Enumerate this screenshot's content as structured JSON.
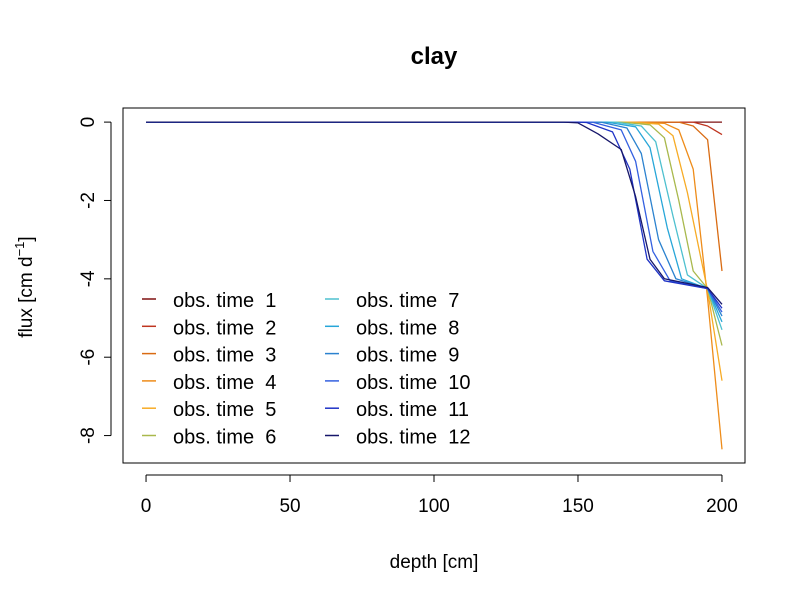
{
  "chart_data": {
    "type": "line",
    "title": "clay",
    "xlabel": "depth [cm]",
    "ylabel": "flux [cm d",
    "ylabel_sup": "−1",
    "ylabel_close": "]",
    "xlim": [
      -8,
      208
    ],
    "ylim": [
      -8.7,
      0.36
    ],
    "x_ticks": [
      0,
      50,
      100,
      150,
      200
    ],
    "y_ticks": [
      0,
      -2,
      -4,
      -6,
      -8
    ],
    "grid": false,
    "legend_position": "bottom-left",
    "series": [
      {
        "name": "obs. time  1",
        "color": "#7f1010",
        "points": [
          [
            0,
            0
          ],
          [
            150,
            0
          ],
          [
            180,
            0
          ],
          [
            190,
            0
          ],
          [
            195,
            0
          ],
          [
            200,
            0
          ]
        ]
      },
      {
        "name": "obs. time  2",
        "color": "#bf3520",
        "points": [
          [
            0,
            0
          ],
          [
            150,
            0
          ],
          [
            180,
            0
          ],
          [
            190,
            0
          ],
          [
            195,
            -0.1
          ],
          [
            200,
            -0.32
          ]
        ]
      },
      {
        "name": "obs. time  3",
        "color": "#d96b12",
        "points": [
          [
            0,
            0
          ],
          [
            150,
            0
          ],
          [
            175,
            0
          ],
          [
            185,
            0
          ],
          [
            190,
            -0.1
          ],
          [
            195,
            -0.45
          ],
          [
            200,
            -3.8
          ]
        ]
      },
      {
        "name": "obs. time  4",
        "color": "#ee8c1a",
        "points": [
          [
            0,
            0
          ],
          [
            150,
            0
          ],
          [
            170,
            0
          ],
          [
            180,
            -0.03
          ],
          [
            185,
            -0.2
          ],
          [
            190,
            -1.2
          ],
          [
            195,
            -4.5
          ],
          [
            200,
            -8.35
          ]
        ]
      },
      {
        "name": "obs. time  5",
        "color": "#f7ab25",
        "points": [
          [
            0,
            0
          ],
          [
            150,
            0
          ],
          [
            168,
            0
          ],
          [
            178,
            -0.05
          ],
          [
            183,
            -0.35
          ],
          [
            188,
            -1.8
          ],
          [
            195,
            -4.3
          ],
          [
            200,
            -6.6
          ]
        ]
      },
      {
        "name": "obs. time  6",
        "color": "#a9b84c",
        "points": [
          [
            0,
            0
          ],
          [
            150,
            0
          ],
          [
            165,
            0
          ],
          [
            175,
            -0.07
          ],
          [
            180,
            -0.4
          ],
          [
            185,
            -2.0
          ],
          [
            190,
            -3.8
          ],
          [
            195,
            -4.25
          ],
          [
            200,
            -5.7
          ]
        ]
      },
      {
        "name": "obs. time  7",
        "color": "#4ec0cf",
        "points": [
          [
            0,
            0
          ],
          [
            150,
            0
          ],
          [
            163,
            0
          ],
          [
            172,
            -0.1
          ],
          [
            177,
            -0.5
          ],
          [
            183,
            -2.4
          ],
          [
            188,
            -3.9
          ],
          [
            195,
            -4.25
          ],
          [
            200,
            -5.3
          ]
        ]
      },
      {
        "name": "obs. time  8",
        "color": "#27a6d8",
        "points": [
          [
            0,
            0
          ],
          [
            150,
            0
          ],
          [
            160,
            0
          ],
          [
            170,
            -0.12
          ],
          [
            175,
            -0.65
          ],
          [
            181,
            -2.7
          ],
          [
            186,
            -4.0
          ],
          [
            195,
            -4.25
          ],
          [
            200,
            -5.1
          ]
        ]
      },
      {
        "name": "obs. time  9",
        "color": "#2b82cf",
        "points": [
          [
            0,
            0
          ],
          [
            150,
            0
          ],
          [
            158,
            0
          ],
          [
            167,
            -0.15
          ],
          [
            172,
            -0.8
          ],
          [
            178,
            -3.0
          ],
          [
            184,
            -4.0
          ],
          [
            195,
            -4.25
          ],
          [
            200,
            -4.95
          ]
        ]
      },
      {
        "name": "obs. time  10",
        "color": "#3460e0",
        "points": [
          [
            0,
            0
          ],
          [
            150,
            0
          ],
          [
            155,
            0
          ],
          [
            165,
            -0.2
          ],
          [
            170,
            -1.0
          ],
          [
            176,
            -3.3
          ],
          [
            182,
            -4.05
          ],
          [
            195,
            -4.25
          ],
          [
            200,
            -4.85
          ]
        ]
      },
      {
        "name": "obs. time  11",
        "color": "#1e32c6",
        "points": [
          [
            0,
            0
          ],
          [
            150,
            0
          ],
          [
            153,
            -0.01
          ],
          [
            162,
            -0.25
          ],
          [
            168,
            -1.2
          ],
          [
            174,
            -3.5
          ],
          [
            180,
            -4.05
          ],
          [
            195,
            -4.25
          ],
          [
            200,
            -4.75
          ]
        ]
      },
      {
        "name": "obs. time  12",
        "color": "#16166a",
        "points": [
          [
            0,
            0
          ],
          [
            145,
            0
          ],
          [
            150,
            -0.02
          ],
          [
            157,
            -0.3
          ],
          [
            165,
            -0.7
          ],
          [
            170,
            -1.9
          ],
          [
            175,
            -3.5
          ],
          [
            180,
            -4.0
          ],
          [
            195,
            -4.22
          ],
          [
            200,
            -4.65
          ]
        ]
      }
    ]
  }
}
